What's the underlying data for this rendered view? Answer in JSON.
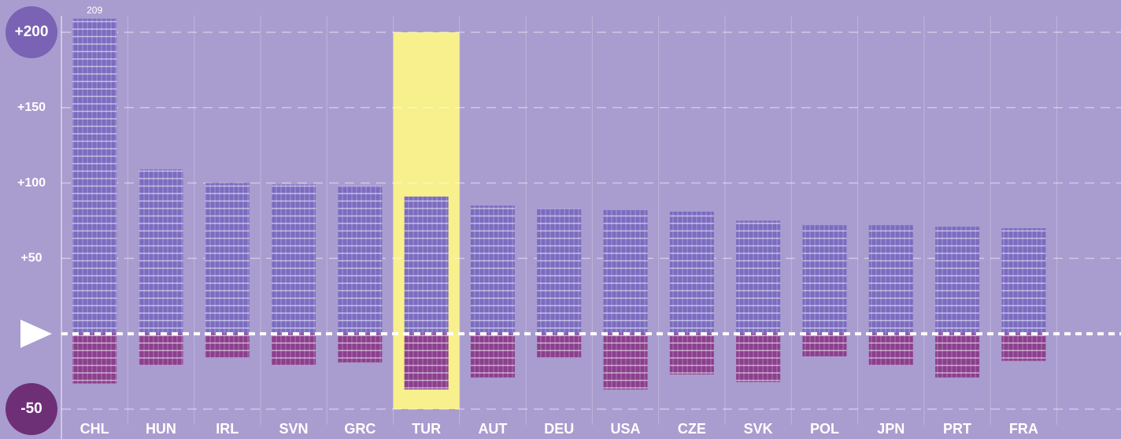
{
  "chart_data": {
    "type": "bar",
    "categories": [
      "CHL",
      "HUN",
      "IRL",
      "SVN",
      "GRC",
      "TUR",
      "AUT",
      "DEU",
      "USA",
      "CZE",
      "SVK",
      "POL",
      "JPN",
      "PRT",
      "FRA"
    ],
    "series": [
      {
        "color": "#7b6cc0",
        "values": [
          209,
          109,
          100,
          99,
          98,
          91,
          85,
          83,
          82,
          81,
          75,
          72,
          72,
          71,
          70
        ],
        "value_labels": [
          "209",
          null,
          null,
          null,
          null,
          null,
          null,
          null,
          null,
          null,
          null,
          null,
          null,
          null,
          null
        ]
      },
      {
        "color": "#8b3f8e",
        "values": [
          -33,
          -21,
          -16,
          -21,
          -19,
          -37,
          -29,
          -16,
          -37,
          -27,
          -32,
          -15,
          -21,
          -29,
          -18
        ]
      }
    ],
    "ylim": [
      -50,
      200
    ],
    "yticks": [
      {
        "value": -50,
        "label": "-50"
      },
      0,
      {
        "value": 50,
        "label": "+50"
      },
      {
        "value": 100,
        "label": "+100"
      },
      {
        "value": 150,
        "label": "+150"
      },
      {
        "value": 200,
        "label": "+200"
      }
    ],
    "grid": true,
    "highlight": "TUR",
    "highlight_color": "#f7f08c"
  }
}
